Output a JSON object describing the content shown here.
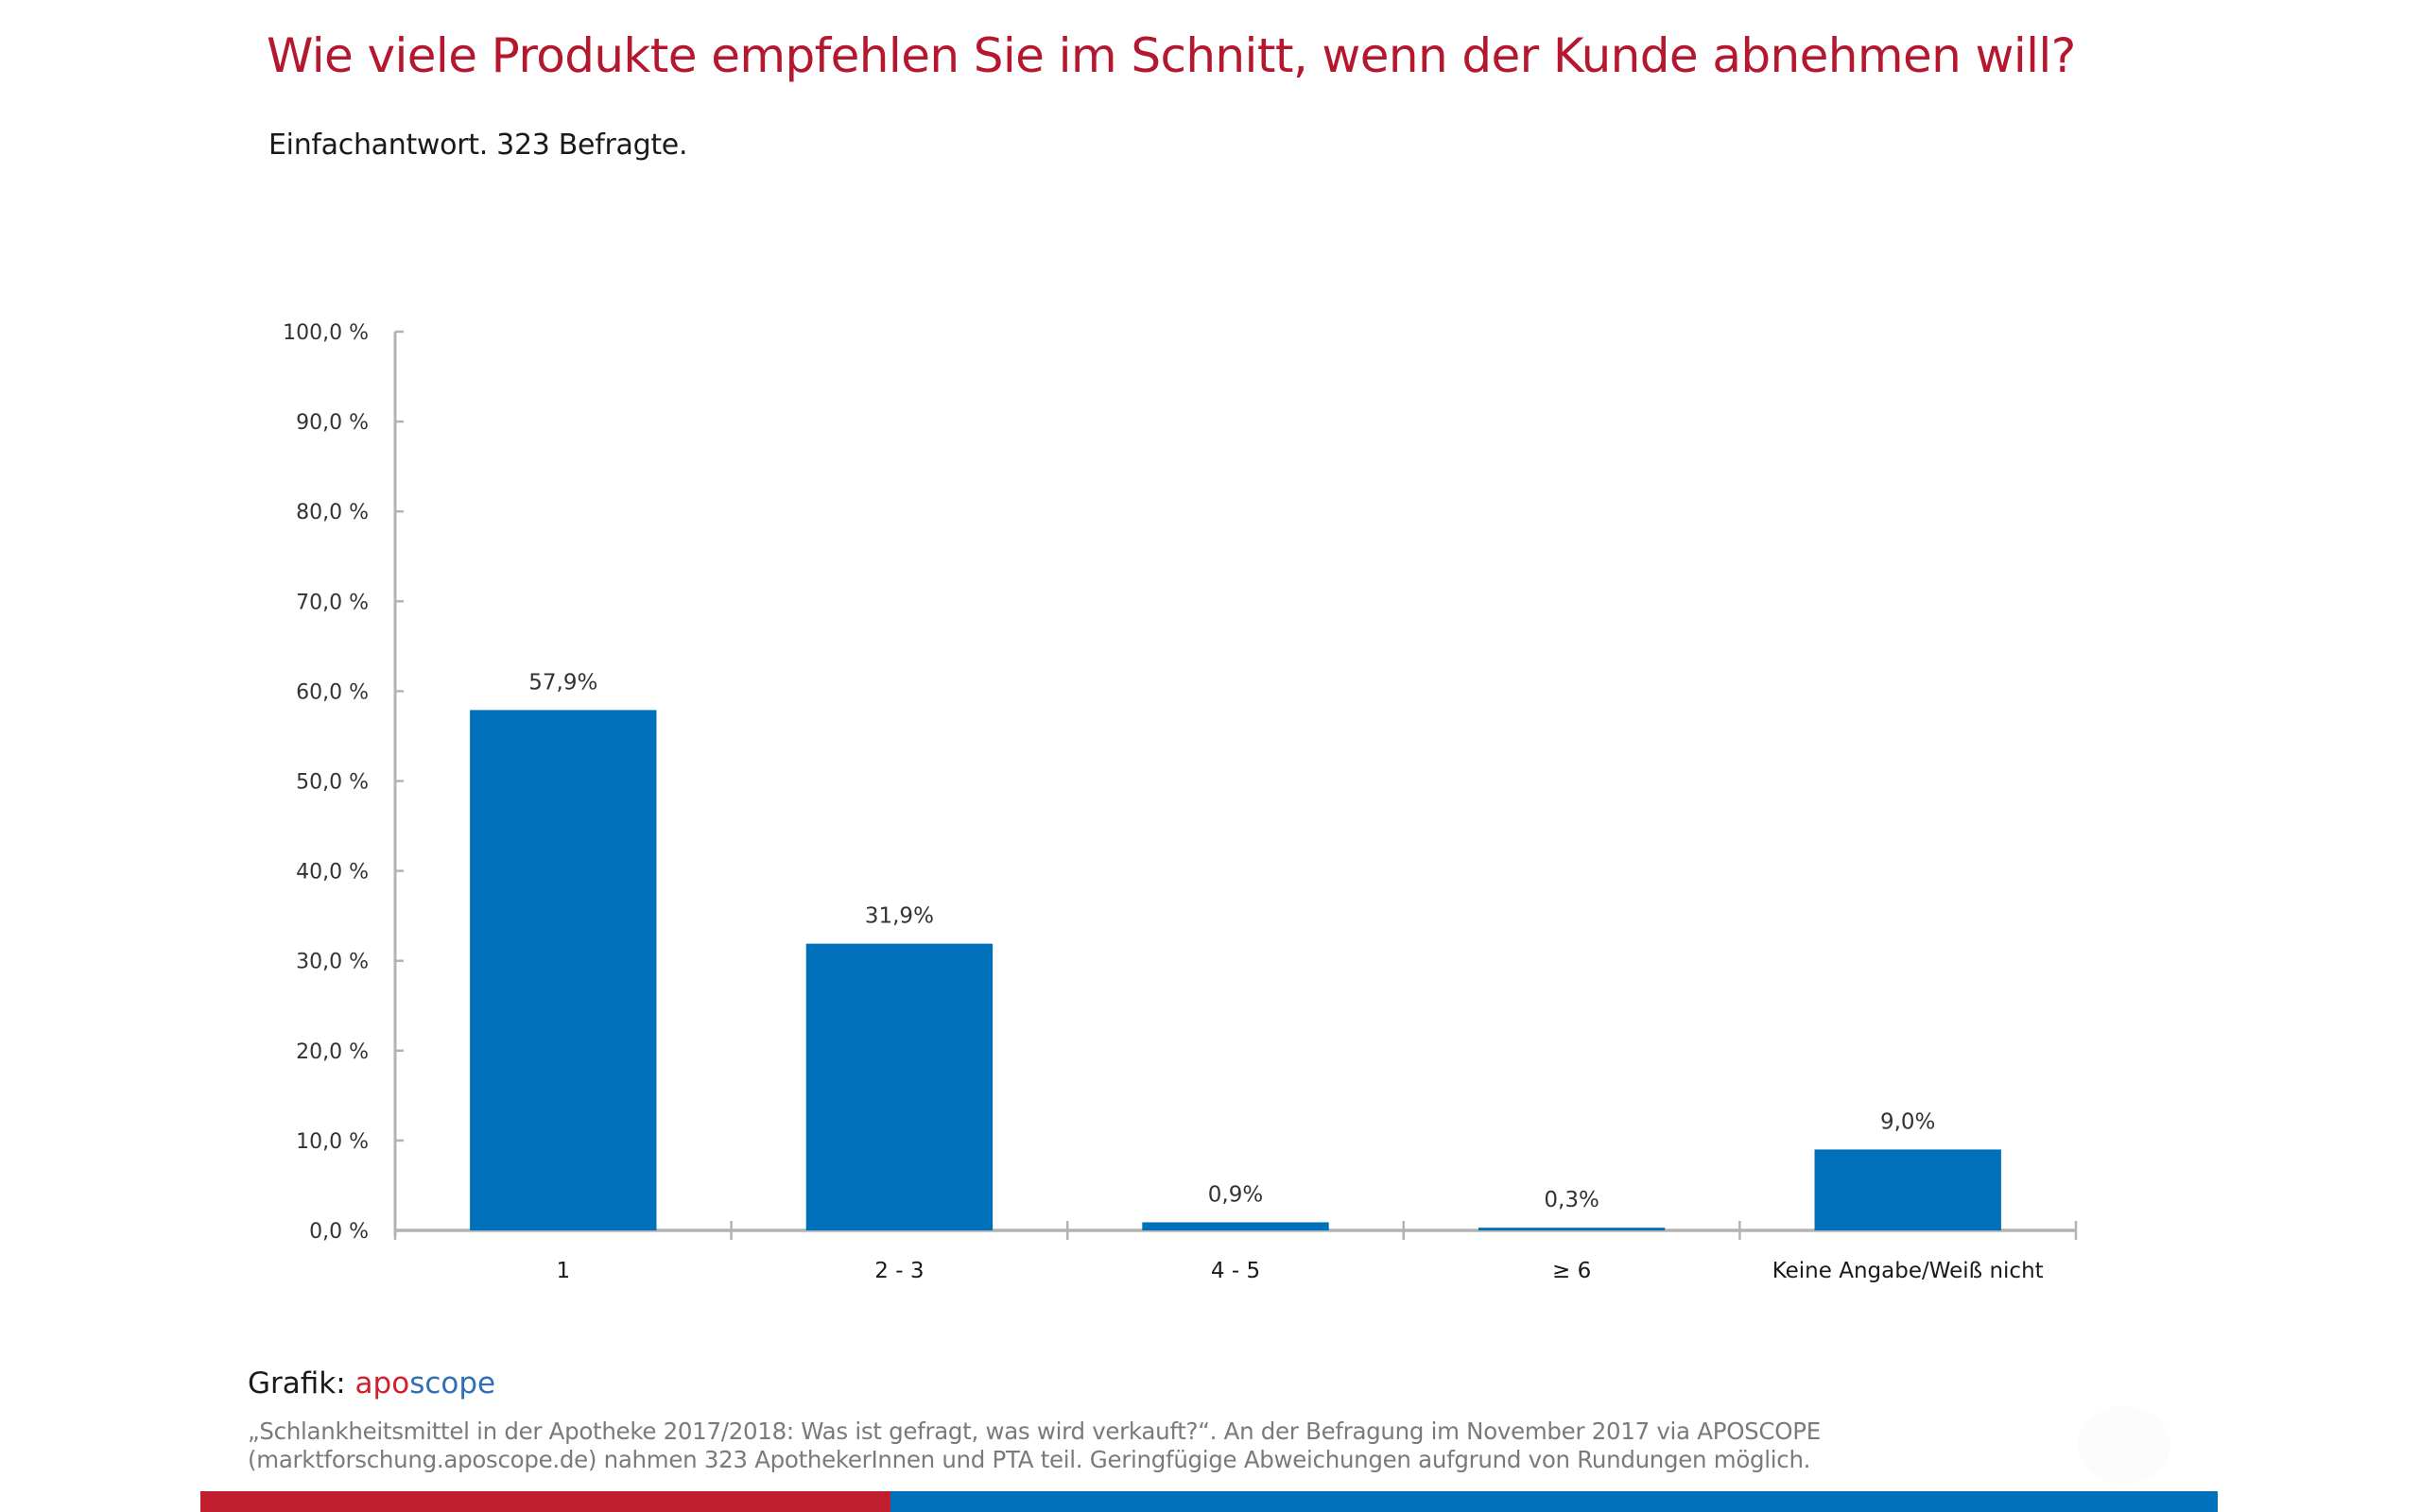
{
  "header": {
    "title": "Wie viele Produkte empfehlen Sie im Schnitt, wenn der Kunde abnehmen will?",
    "subtitle": "Einfachantwort. 323 Befragte."
  },
  "chart_data": {
    "type": "bar",
    "title": "Wie viele Produkte empfehlen Sie im Schnitt, wenn der Kunde abnehmen will?",
    "subtitle": "Einfachantwort. 323 Befragte.",
    "xlabel": "",
    "ylabel": "",
    "categories": [
      "1",
      "2 - 3",
      "4 - 5",
      "≥ 6",
      "Keine Angabe/Weiß nicht"
    ],
    "values": [
      57.9,
      31.9,
      0.9,
      0.3,
      9.0
    ],
    "data_labels": [
      "57,9%",
      "31,9%",
      "0,9%",
      "0,3%",
      "9,0%"
    ],
    "ylim": [
      0,
      100
    ],
    "yticks": [
      0,
      10,
      20,
      30,
      40,
      50,
      60,
      70,
      80,
      90,
      100
    ],
    "ytick_labels": [
      "0,0 %",
      "10,0 %",
      "20,0 %",
      "30,0 %",
      "40,0 %",
      "50,0 %",
      "60,0 %",
      "70,0 %",
      "80,0 %",
      "90,0 %",
      "100,0 %"
    ],
    "grid": false,
    "legend": "none",
    "bar_color": "#0070bb"
  },
  "footer": {
    "grafik_label": "Grafik:",
    "brand_part1": "apo",
    "brand_part2": "scope",
    "note_line1": "„Schlankheitsmittel in der Apotheke 2017/2018: Was ist gefragt, was wird verkauft?“. An der Befragung im November 2017 via APOSCOPE",
    "note_line2": "(marktforschung.aposcope.de) nahmen 323 ApothekerInnen und PTA teil. Geringfügige Abweichungen aufgrund von Rundungen möglich."
  },
  "colors": {
    "title": "#b5182e",
    "bar": "#0070bb",
    "brand_red": "#d0202e",
    "brand_blue": "#2f6fb5",
    "stripe_red": "#be1e2d",
    "stripe_blue": "#0070bb"
  }
}
